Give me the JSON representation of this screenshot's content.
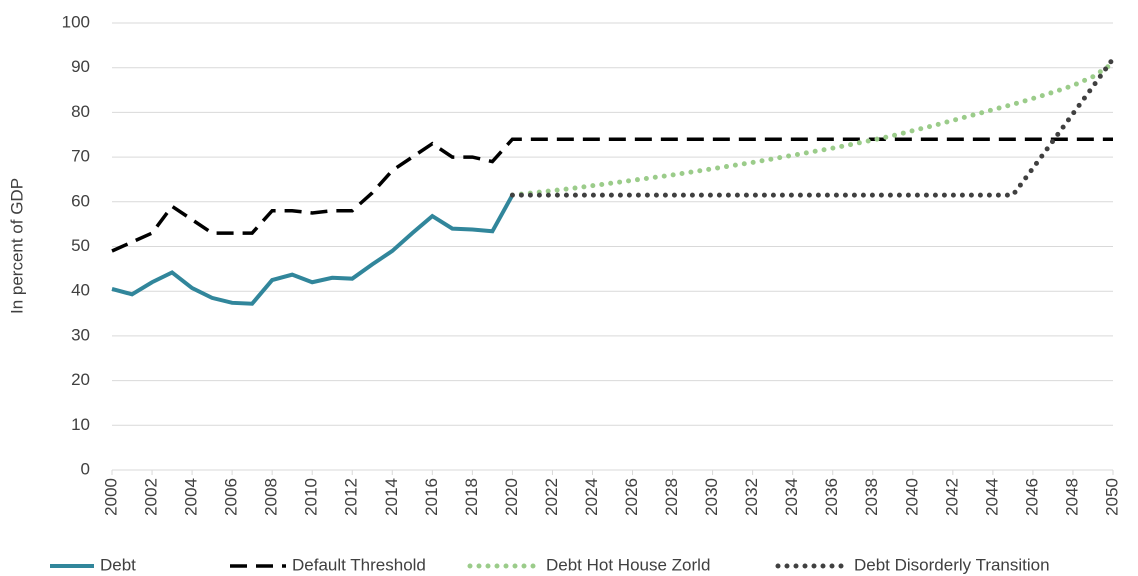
{
  "chart_data": {
    "type": "line",
    "y_label": "In percent of GDP",
    "x": [
      2000,
      2001,
      2002,
      2003,
      2004,
      2005,
      2006,
      2007,
      2008,
      2009,
      2010,
      2011,
      2012,
      2013,
      2014,
      2015,
      2016,
      2017,
      2018,
      2019,
      2020,
      2021,
      2022,
      2023,
      2024,
      2025,
      2026,
      2027,
      2028,
      2029,
      2030,
      2031,
      2032,
      2033,
      2034,
      2035,
      2036,
      2037,
      2038,
      2039,
      2040,
      2041,
      2042,
      2043,
      2044,
      2045,
      2046,
      2047,
      2048,
      2049,
      2050
    ],
    "xlim": [
      2000,
      2050
    ],
    "xticks": [
      2000,
      2002,
      2004,
      2006,
      2008,
      2010,
      2012,
      2014,
      2016,
      2018,
      2020,
      2022,
      2024,
      2026,
      2028,
      2030,
      2032,
      2034,
      2036,
      2038,
      2040,
      2042,
      2044,
      2046,
      2048,
      2050
    ],
    "ylim": [
      0,
      100
    ],
    "yticks": [
      0,
      10,
      20,
      30,
      40,
      50,
      60,
      70,
      80,
      90,
      100
    ],
    "grid": true,
    "legend": "bottom",
    "series": [
      {
        "name": "Debt",
        "color": "#31869b",
        "style": "solid",
        "values": [
          40.5,
          39.3,
          42,
          44.2,
          40.7,
          38.5,
          37.4,
          37.2,
          42.5,
          43.7,
          42,
          43,
          42.8,
          46,
          49,
          53,
          56.8,
          54,
          53.8,
          53.4,
          61.5,
          null,
          null,
          null,
          null,
          null,
          null,
          null,
          null,
          null,
          null,
          null,
          null,
          null,
          null,
          null,
          null,
          null,
          null,
          null,
          null,
          null,
          null,
          null,
          null,
          null,
          null,
          null,
          null,
          null,
          null
        ]
      },
      {
        "name": "Default Threshold",
        "color": "#000000",
        "style": "dashed",
        "values": [
          49,
          51,
          53,
          59,
          56,
          53,
          53,
          53,
          58,
          58,
          57.5,
          58,
          58,
          62,
          67,
          70,
          73,
          70,
          70,
          69,
          74,
          74,
          74,
          74,
          74,
          74,
          74,
          74,
          74,
          74,
          74,
          74,
          74,
          74,
          74,
          74,
          74,
          74,
          74,
          74,
          74,
          74,
          74,
          74,
          74,
          74,
          74,
          74,
          74,
          74,
          74
        ]
      },
      {
        "name": "Debt Hot House Zorld",
        "color": "#9bcc8a",
        "style": "dotted",
        "values": [
          null,
          null,
          null,
          null,
          null,
          null,
          null,
          null,
          null,
          null,
          null,
          null,
          null,
          null,
          null,
          null,
          null,
          null,
          null,
          null,
          61.5,
          62,
          62.5,
          63,
          63.6,
          64.2,
          64.8,
          65.4,
          66,
          66.7,
          67.4,
          68.1,
          68.8,
          69.6,
          70.4,
          71.2,
          72,
          72.9,
          73.8,
          74.8,
          75.9,
          77,
          78.2,
          79.4,
          80.6,
          81.8,
          83.1,
          84.5,
          86,
          88,
          91
        ]
      },
      {
        "name": "Debt Disorderly Transition",
        "color": "#404040",
        "style": "dotted",
        "values": [
          null,
          null,
          null,
          null,
          null,
          null,
          null,
          null,
          null,
          null,
          null,
          null,
          null,
          null,
          null,
          null,
          null,
          null,
          null,
          null,
          61.5,
          61.5,
          61.5,
          61.5,
          61.5,
          61.5,
          61.5,
          61.5,
          61.5,
          61.5,
          61.5,
          61.5,
          61.5,
          61.5,
          61.5,
          61.5,
          61.5,
          61.5,
          61.5,
          61.5,
          61.5,
          61.5,
          61.5,
          61.5,
          61.5,
          61.5,
          67.5,
          73.6,
          79.7,
          85.8,
          92
        ]
      }
    ]
  }
}
